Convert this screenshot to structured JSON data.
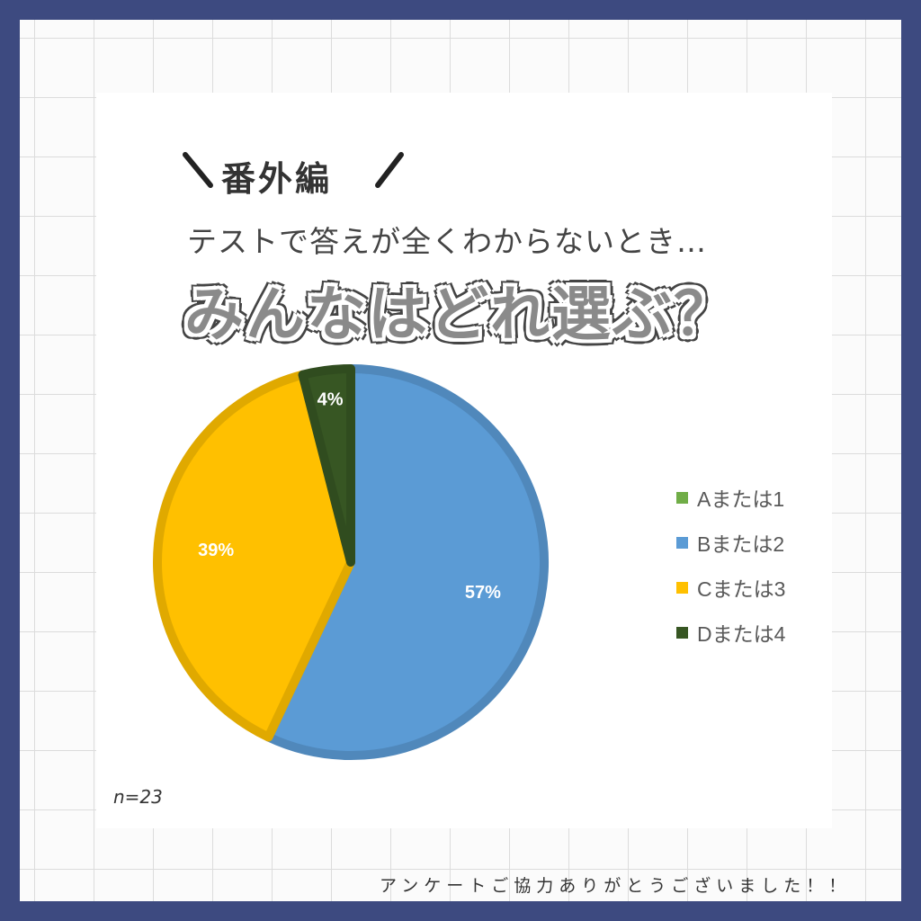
{
  "header": {
    "tag": "番外編",
    "subtitle": "テストで答えが全くわからないとき…",
    "title": "みんなはどれ選ぶ？"
  },
  "chart_data": {
    "type": "pie",
    "categories": [
      "Aまたは1",
      "Bまたは2",
      "Cまたは3",
      "Dまたは4"
    ],
    "values": [
      0,
      57,
      39,
      4
    ],
    "labels": [
      "",
      "57%",
      "39%",
      "4%"
    ],
    "colors": [
      "#70ad47",
      "#5b9bd5",
      "#ffc000",
      "#375623"
    ],
    "legend_position": "right"
  },
  "note": "n=23",
  "footer": "アンケートご協力ありがとうございました！！"
}
